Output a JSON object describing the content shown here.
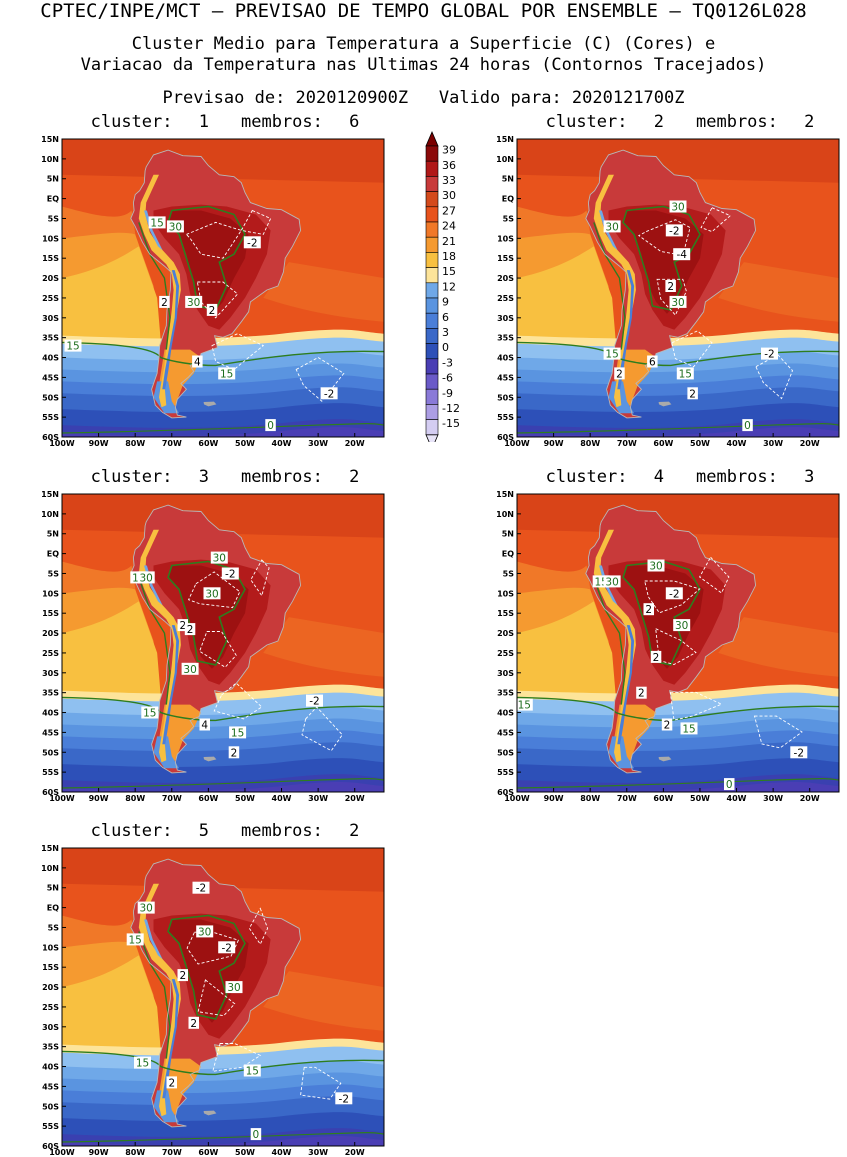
{
  "header": {
    "line1": "CPTEC/INPE/MCT – PREVISAO DE TEMPO GLOBAL POR ENSEMBLE – TQ0126L028",
    "line2": "Cluster Medio para Temperatura a Superficie (C) (Cores) e",
    "line3": "Variacao da Temperatura nas Ultimas 24 horas (Contornos Tracejados)",
    "forecast_label": "Previsao de: 2020120900Z",
    "valid_label": "Valido para: 2020121700Z"
  },
  "axes": {
    "lat_labels": [
      "15N",
      "10N",
      "5N",
      "EQ",
      "5S",
      "10S",
      "15S",
      "20S",
      "25S",
      "30S",
      "35S",
      "40S",
      "45S",
      "50S",
      "55S",
      "60S"
    ],
    "lon_labels": [
      "100W",
      "90W",
      "80W",
      "70W",
      "60W",
      "50W",
      "40W",
      "30W",
      "20W"
    ]
  },
  "colorbar": {
    "labels": [
      "39",
      "36",
      "33",
      "30",
      "27",
      "24",
      "21",
      "18",
      "15",
      "12",
      "9",
      "6",
      "3",
      "0",
      "-3",
      "-6",
      "-9",
      "-12",
      "-15"
    ],
    "colors": [
      "#8b0a0a",
      "#b01818",
      "#c83a3a",
      "#d44a1c",
      "#e8531c",
      "#f07828",
      "#f59a30",
      "#f8c040",
      "#fde49a",
      "#6fa8e8",
      "#5a94e0",
      "#4a7ed8",
      "#3a68c8",
      "#2d50b8",
      "#4a3eb4",
      "#6a5ac8",
      "#8a7ad8",
      "#ac9ee4",
      "#d4cdf2"
    ],
    "top_arrow_color": "#7a0000",
    "bottom_arrow_color": "#e8e4f8"
  },
  "panels": [
    {
      "cluster_label": "cluster:",
      "cluster_num": "1",
      "members_label": "membros:",
      "members_num": "6",
      "labels": [
        {
          "t": "15",
          "lon": -74,
          "lat": -6,
          "c": "green"
        },
        {
          "t": "30",
          "lon": -69,
          "lat": -7,
          "c": "green"
        },
        {
          "t": "-2",
          "lon": -48,
          "lat": -11,
          "c": "white"
        },
        {
          "t": "2",
          "lon": -72,
          "lat": -26,
          "c": "white"
        },
        {
          "t": "30",
          "lon": -64,
          "lat": -26,
          "c": "green"
        },
        {
          "t": "2",
          "lon": -59,
          "lat": -28,
          "c": "white"
        },
        {
          "t": "15",
          "lon": -97,
          "lat": -37,
          "c": "green"
        },
        {
          "t": "4",
          "lon": -63,
          "lat": -41,
          "c": "white"
        },
        {
          "t": "15",
          "lon": -55,
          "lat": -44,
          "c": "green"
        },
        {
          "t": "-2",
          "lon": -27,
          "lat": -49,
          "c": "white"
        },
        {
          "t": "0",
          "lon": -43,
          "lat": -57,
          "c": "green"
        }
      ]
    },
    {
      "cluster_label": "cluster:",
      "cluster_num": "2",
      "members_label": "membros:",
      "members_num": "2",
      "labels": [
        {
          "t": "30",
          "lon": -74,
          "lat": -7,
          "c": "green"
        },
        {
          "t": "30",
          "lon": -56,
          "lat": -2,
          "c": "green"
        },
        {
          "t": "-2",
          "lon": -57,
          "lat": -8,
          "c": "white"
        },
        {
          "t": "-4",
          "lon": -55,
          "lat": -14,
          "c": "white"
        },
        {
          "t": "2",
          "lon": -58,
          "lat": -22,
          "c": "white"
        },
        {
          "t": "30",
          "lon": -56,
          "lat": -26,
          "c": "green"
        },
        {
          "t": "15",
          "lon": -74,
          "lat": -39,
          "c": "green"
        },
        {
          "t": "-2",
          "lon": -31,
          "lat": -39,
          "c": "white"
        },
        {
          "t": "6",
          "lon": -63,
          "lat": -41,
          "c": "white"
        },
        {
          "t": "2",
          "lon": -72,
          "lat": -44,
          "c": "white"
        },
        {
          "t": "15",
          "lon": -54,
          "lat": -44,
          "c": "green"
        },
        {
          "t": "2",
          "lon": -52,
          "lat": -49,
          "c": "white"
        },
        {
          "t": "0",
          "lon": -37,
          "lat": -57,
          "c": "green"
        }
      ]
    },
    {
      "cluster_label": "cluster:",
      "cluster_num": "3",
      "members_label": "membros:",
      "members_num": "2",
      "labels": [
        {
          "t": "30",
          "lon": -57,
          "lat": -1,
          "c": "green"
        },
        {
          "t": "15",
          "lon": -79,
          "lat": -6,
          "c": "green"
        },
        {
          "t": "30",
          "lon": -77,
          "lat": -6,
          "c": "green"
        },
        {
          "t": "-2",
          "lon": -54,
          "lat": -5,
          "c": "white"
        },
        {
          "t": "30",
          "lon": -59,
          "lat": -10,
          "c": "green"
        },
        {
          "t": "2",
          "lon": -67,
          "lat": -18,
          "c": "white"
        },
        {
          "t": "2",
          "lon": -65,
          "lat": -19,
          "c": "white"
        },
        {
          "t": "30",
          "lon": -65,
          "lat": -29,
          "c": "green"
        },
        {
          "t": "-2",
          "lon": -31,
          "lat": -37,
          "c": "white"
        },
        {
          "t": "15",
          "lon": -76,
          "lat": -40,
          "c": "green"
        },
        {
          "t": "4",
          "lon": -61,
          "lat": -43,
          "c": "white"
        },
        {
          "t": "15",
          "lon": -52,
          "lat": -45,
          "c": "green"
        },
        {
          "t": "2",
          "lon": -53,
          "lat": -50,
          "c": "white"
        }
      ]
    },
    {
      "cluster_label": "cluster:",
      "cluster_num": "4",
      "members_label": "membros:",
      "members_num": "3",
      "labels": [
        {
          "t": "30",
          "lon": -62,
          "lat": -3,
          "c": "green"
        },
        {
          "t": "15",
          "lon": -77,
          "lat": -7,
          "c": "green"
        },
        {
          "t": "30",
          "lon": -74,
          "lat": -7,
          "c": "green"
        },
        {
          "t": "-2",
          "lon": -57,
          "lat": -10,
          "c": "white"
        },
        {
          "t": "2",
          "lon": -64,
          "lat": -14,
          "c": "white"
        },
        {
          "t": "30",
          "lon": -55,
          "lat": -18,
          "c": "green"
        },
        {
          "t": "2",
          "lon": -62,
          "lat": -26,
          "c": "white"
        },
        {
          "t": "2",
          "lon": -66,
          "lat": -35,
          "c": "white"
        },
        {
          "t": "15",
          "lon": -98,
          "lat": -38,
          "c": "green"
        },
        {
          "t": "2",
          "lon": -59,
          "lat": -43,
          "c": "white"
        },
        {
          "t": "15",
          "lon": -53,
          "lat": -44,
          "c": "green"
        },
        {
          "t": "-2",
          "lon": -23,
          "lat": -50,
          "c": "white"
        },
        {
          "t": "0",
          "lon": -42,
          "lat": -58,
          "c": "green"
        }
      ]
    },
    {
      "cluster_label": "cluster:",
      "cluster_num": "5",
      "members_label": "membros:",
      "members_num": "2",
      "labels": [
        {
          "t": "-2",
          "lon": -62,
          "lat": 5,
          "c": "white"
        },
        {
          "t": "30",
          "lon": -77,
          "lat": 0,
          "c": "green"
        },
        {
          "t": "15",
          "lon": -80,
          "lat": -8,
          "c": "green"
        },
        {
          "t": "30",
          "lon": -61,
          "lat": -6,
          "c": "green"
        },
        {
          "t": "-2",
          "lon": -55,
          "lat": -10,
          "c": "white"
        },
        {
          "t": "2",
          "lon": -67,
          "lat": -17,
          "c": "white"
        },
        {
          "t": "30",
          "lon": -53,
          "lat": -20,
          "c": "green"
        },
        {
          "t": "2",
          "lon": -64,
          "lat": -29,
          "c": "white"
        },
        {
          "t": "15",
          "lon": -78,
          "lat": -39,
          "c": "green"
        },
        {
          "t": "15",
          "lon": -48,
          "lat": -41,
          "c": "green"
        },
        {
          "t": "2",
          "lon": -70,
          "lat": -44,
          "c": "white"
        },
        {
          "t": "-2",
          "lon": -23,
          "lat": -48,
          "c": "white"
        },
        {
          "t": "0",
          "lon": -47,
          "lat": -57,
          "c": "green"
        }
      ]
    }
  ]
}
